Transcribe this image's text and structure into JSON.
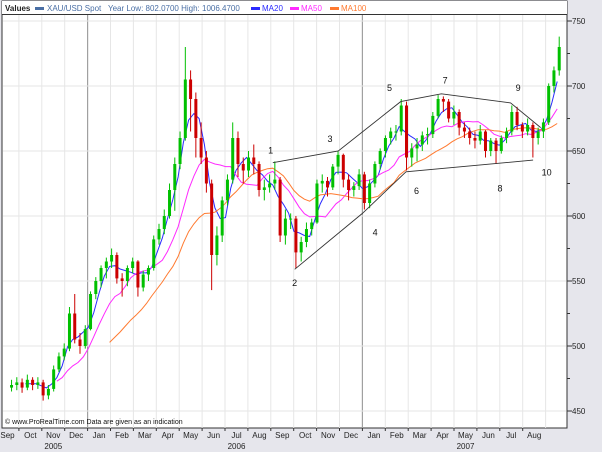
{
  "legend": {
    "title": "Values",
    "instrument": "XAU/USD Spot",
    "range_text": "Year Low: 802.0700 High: 1006.4700",
    "items": [
      {
        "label": "MA20",
        "color": "#2a2aff"
      },
      {
        "label": "MA50",
        "color": "#ff2aff"
      },
      {
        "label": "MA100",
        "color": "#ff7a30"
      }
    ],
    "instrument_color": "#4a6fa5"
  },
  "footer": {
    "copyright": "© www.ProRealTime.com Data are given as an indication"
  },
  "chart_data": {
    "type": "candlestick",
    "title": "",
    "xlabel": "",
    "ylabel": "",
    "ylim": [
      440,
      760
    ],
    "y_ticks": [
      "450",
      "500",
      "550",
      "600",
      "650",
      "700",
      "750"
    ],
    "x_month_labels": [
      "Sep",
      "Oct",
      "Nov",
      "Dec",
      "Jan",
      "Feb",
      "Mar",
      "Apr",
      "May",
      "Jun",
      "Jul",
      "Aug",
      "Sep",
      "Oct",
      "Nov",
      "Dec",
      "Jan",
      "Feb",
      "Mar",
      "Apr",
      "May",
      "Jun",
      "Jul",
      "Aug"
    ],
    "x_year_labels": [
      {
        "label": "2005",
        "month_index": 2
      },
      {
        "label": "2006",
        "month_index": 10
      },
      {
        "label": "2007",
        "month_index": 20
      }
    ],
    "x_start_month": "2005-09",
    "grid": true,
    "up_color": "#00c000",
    "down_color": "#cc0000",
    "moving_averages_days": [
      20,
      50,
      100
    ],
    "ohlc_columns": [
      "week",
      "open",
      "high",
      "low",
      "close"
    ],
    "ohlc": [
      [
        "2005-09-19",
        468,
        474,
        465,
        470
      ],
      [
        "2005-09-26",
        470,
        476,
        466,
        472
      ],
      [
        "2005-10-03",
        472,
        475,
        464,
        468
      ],
      [
        "2005-10-10",
        468,
        478,
        466,
        474
      ],
      [
        "2005-10-17",
        474,
        476,
        466,
        470
      ],
      [
        "2005-10-24",
        470,
        476,
        467,
        472
      ],
      [
        "2005-10-31",
        472,
        474,
        458,
        462
      ],
      [
        "2005-11-07",
        462,
        470,
        459,
        467
      ],
      [
        "2005-11-14",
        467,
        485,
        465,
        482
      ],
      [
        "2005-11-21",
        482,
        495,
        480,
        492
      ],
      [
        "2005-11-28",
        492,
        502,
        489,
        498
      ],
      [
        "2005-12-05",
        498,
        530,
        496,
        525
      ],
      [
        "2005-12-12",
        525,
        540,
        502,
        505
      ],
      [
        "2005-12-19",
        505,
        510,
        494,
        500
      ],
      [
        "2005-12-26",
        500,
        516,
        498,
        513
      ],
      [
        "2006-01-02",
        513,
        542,
        512,
        540
      ],
      [
        "2006-01-09",
        540,
        553,
        536,
        550
      ],
      [
        "2006-01-16",
        550,
        562,
        545,
        560
      ],
      [
        "2006-01-23",
        560,
        568,
        552,
        565
      ],
      [
        "2006-01-30",
        565,
        575,
        560,
        570
      ],
      [
        "2006-02-06",
        570,
        572,
        548,
        552
      ],
      [
        "2006-02-13",
        552,
        556,
        538,
        550
      ],
      [
        "2006-02-20",
        550,
        562,
        546,
        560
      ],
      [
        "2006-02-27",
        560,
        568,
        556,
        565
      ],
      [
        "2006-03-06",
        565,
        566,
        538,
        545
      ],
      [
        "2006-03-13",
        545,
        558,
        542,
        555
      ],
      [
        "2006-03-20",
        555,
        562,
        550,
        560
      ],
      [
        "2006-03-27",
        560,
        585,
        558,
        582
      ],
      [
        "2006-04-03",
        582,
        594,
        578,
        590
      ],
      [
        "2006-04-10",
        590,
        605,
        586,
        600
      ],
      [
        "2006-04-17",
        600,
        625,
        598,
        620
      ],
      [
        "2006-04-24",
        620,
        645,
        604,
        640
      ],
      [
        "2006-05-01",
        640,
        665,
        636,
        660
      ],
      [
        "2006-05-08",
        660,
        730,
        658,
        705
      ],
      [
        "2006-05-15",
        705,
        712,
        665,
        690
      ],
      [
        "2006-05-22",
        690,
        695,
        645,
        660
      ],
      [
        "2006-05-29",
        660,
        672,
        640,
        645
      ],
      [
        "2006-06-05",
        645,
        650,
        618,
        625
      ],
      [
        "2006-06-12",
        625,
        628,
        543,
        570
      ],
      [
        "2006-06-19",
        570,
        592,
        562,
        585
      ],
      [
        "2006-06-26",
        585,
        615,
        580,
        612
      ],
      [
        "2006-07-03",
        612,
        632,
        608,
        628
      ],
      [
        "2006-07-10",
        628,
        672,
        625,
        660
      ],
      [
        "2006-07-17",
        660,
        665,
        630,
        640
      ],
      [
        "2006-07-24",
        640,
        645,
        625,
        635
      ],
      [
        "2006-07-31",
        635,
        650,
        630,
        645
      ],
      [
        "2006-08-07",
        645,
        655,
        632,
        640
      ],
      [
        "2006-08-14",
        640,
        642,
        615,
        620
      ],
      [
        "2006-08-21",
        620,
        628,
        612,
        622
      ],
      [
        "2006-08-28",
        622,
        632,
        618,
        625
      ],
      [
        "2006-09-04",
        625,
        642,
        620,
        628
      ],
      [
        "2006-09-11",
        628,
        630,
        580,
        585
      ],
      [
        "2006-09-18",
        585,
        605,
        578,
        598
      ],
      [
        "2006-09-25",
        598,
        602,
        590,
        598
      ],
      [
        "2006-10-02",
        598,
        600,
        560,
        572
      ],
      [
        "2006-10-09",
        572,
        584,
        565,
        580
      ],
      [
        "2006-10-16",
        580,
        595,
        576,
        590
      ],
      [
        "2006-10-23",
        590,
        598,
        585,
        595
      ],
      [
        "2006-10-30",
        595,
        628,
        594,
        625
      ],
      [
        "2006-11-06",
        625,
        632,
        618,
        627
      ],
      [
        "2006-11-13",
        627,
        630,
        615,
        622
      ],
      [
        "2006-11-20",
        622,
        640,
        620,
        638
      ],
      [
        "2006-11-27",
        638,
        650,
        632,
        647
      ],
      [
        "2006-12-04",
        647,
        648,
        622,
        628
      ],
      [
        "2006-12-11",
        628,
        632,
        612,
        620
      ],
      [
        "2006-12-18",
        620,
        626,
        615,
        623
      ],
      [
        "2006-12-25",
        623,
        636,
        620,
        632
      ],
      [
        "2007-01-01",
        632,
        634,
        605,
        610
      ],
      [
        "2007-01-08",
        610,
        628,
        606,
        625
      ],
      [
        "2007-01-15",
        625,
        642,
        622,
        640
      ],
      [
        "2007-01-22",
        640,
        652,
        636,
        650
      ],
      [
        "2007-01-29",
        650,
        662,
        645,
        660
      ],
      [
        "2007-02-05",
        660,
        668,
        655,
        665
      ],
      [
        "2007-02-12",
        665,
        670,
        658,
        665
      ],
      [
        "2007-02-19",
        665,
        690,
        662,
        685
      ],
      [
        "2007-02-26",
        685,
        688,
        635,
        645
      ],
      [
        "2007-03-05",
        645,
        656,
        638,
        652
      ],
      [
        "2007-03-12",
        652,
        660,
        642,
        655
      ],
      [
        "2007-03-19",
        655,
        665,
        650,
        662
      ],
      [
        "2007-03-26",
        662,
        668,
        655,
        663
      ],
      [
        "2007-04-02",
        663,
        680,
        660,
        677
      ],
      [
        "2007-04-09",
        677,
        693,
        675,
        690
      ],
      [
        "2007-04-16",
        690,
        692,
        680,
        688
      ],
      [
        "2007-04-23",
        688,
        690,
        672,
        675
      ],
      [
        "2007-04-30",
        675,
        685,
        670,
        680
      ],
      [
        "2007-05-07",
        680,
        682,
        662,
        668
      ],
      [
        "2007-05-14",
        668,
        672,
        660,
        665
      ],
      [
        "2007-05-21",
        665,
        668,
        655,
        660
      ],
      [
        "2007-05-28",
        660,
        665,
        652,
        658
      ],
      [
        "2007-06-04",
        658,
        670,
        655,
        665
      ],
      [
        "2007-06-11",
        665,
        666,
        645,
        650
      ],
      [
        "2007-06-18",
        650,
        660,
        646,
        658
      ],
      [
        "2007-06-25",
        658,
        660,
        640,
        650
      ],
      [
        "2007-07-02",
        650,
        662,
        648,
        660
      ],
      [
        "2007-07-09",
        660,
        668,
        656,
        665
      ],
      [
        "2007-07-16",
        665,
        685,
        662,
        680
      ],
      [
        "2007-07-23",
        680,
        684,
        666,
        670
      ],
      [
        "2007-07-30",
        670,
        672,
        660,
        665
      ],
      [
        "2007-08-06",
        665,
        675,
        662,
        670
      ],
      [
        "2007-08-13",
        670,
        672,
        645,
        660
      ],
      [
        "2007-08-20",
        660,
        668,
        655,
        665
      ],
      [
        "2007-08-27",
        665,
        675,
        660,
        672
      ],
      [
        "2007-09-03",
        672,
        702,
        670,
        700
      ],
      [
        "2007-09-10",
        700,
        715,
        695,
        712
      ],
      [
        "2007-09-17",
        712,
        738,
        708,
        730
      ]
    ],
    "trendlines": [
      {
        "points": [
          [
            "2006-09-04",
            641
          ],
          [
            "2006-11-30",
            650
          ],
          [
            "2007-02-21",
            688
          ],
          [
            "2007-04-16",
            694
          ],
          [
            "2007-07-17",
            687
          ],
          [
            "2007-08-26",
            668
          ]
        ]
      },
      {
        "points": [
          [
            "2006-09-04",
            641
          ],
          [
            "2006-09-04",
            641
          ]
        ]
      },
      {
        "points": [
          [
            "2006-10-03",
            559
          ],
          [
            "2007-01-01",
            602
          ],
          [
            "2007-02-28",
            634
          ],
          [
            "2007-08-16",
            643
          ]
        ]
      },
      {
        "points": [
          [
            "2006-09-04",
            641
          ],
          [
            "2007-02-28",
            634
          ]
        ],
        "hidden": true
      }
    ],
    "wave_labels": [
      {
        "label": "1",
        "date": "2006-09-01",
        "price": 648
      },
      {
        "label": "2",
        "date": "2006-10-03",
        "price": 546
      },
      {
        "label": "3",
        "date": "2006-11-19",
        "price": 657
      },
      {
        "label": "4",
        "date": "2007-01-18",
        "price": 585
      },
      {
        "label": "5",
        "date": "2007-02-06",
        "price": 696
      },
      {
        "label": "6",
        "date": "2007-03-14",
        "price": 617
      },
      {
        "label": "7",
        "date": "2007-04-21",
        "price": 702
      },
      {
        "label": "8",
        "date": "2007-07-03",
        "price": 619
      },
      {
        "label": "9",
        "date": "2007-07-27",
        "price": 696
      },
      {
        "label": "10",
        "date": "2007-09-03",
        "price": 631
      }
    ]
  }
}
